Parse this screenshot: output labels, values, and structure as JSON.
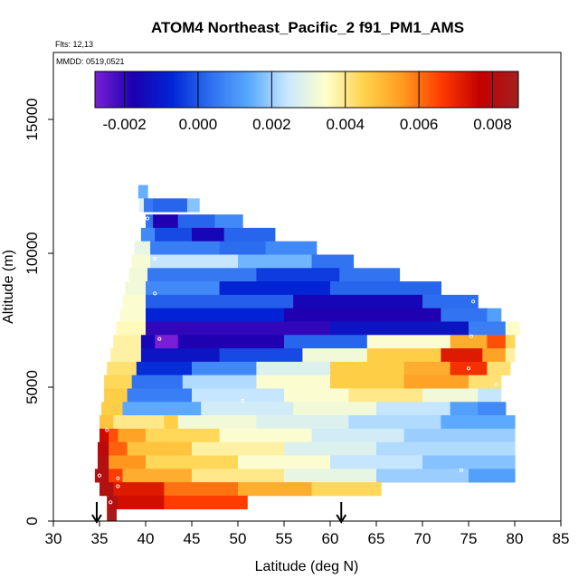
{
  "chart_data": {
    "type": "heatmap",
    "title": "ATOM4 Northeast_Pacific_2 f91_PM1_AMS",
    "annotations": {
      "flights": "Flts: 12,13",
      "dates": "MMDD: 0519,0521"
    },
    "xlabel": "Latitude (deg N)",
    "ylabel": "Altitude (m)",
    "xlim": [
      30,
      85
    ],
    "ylim": [
      0,
      17500
    ],
    "xticks": [
      "30",
      "35",
      "40",
      "45",
      "50",
      "55",
      "60",
      "65",
      "70",
      "75",
      "80",
      "85"
    ],
    "yticks": [
      "0",
      "5000",
      "10000",
      "15000"
    ],
    "colorbar": {
      "range": [
        -0.0028,
        0.0087
      ],
      "ticks": [
        "-0.002",
        "0.000",
        "0.002",
        "0.004",
        "0.006",
        "0.008"
      ],
      "tick_values": [
        -0.002,
        0.0,
        0.002,
        0.004,
        0.006,
        0.008
      ],
      "colors": [
        "#7a1fd6",
        "#1b00b0",
        "#0026d6",
        "#2e6ff0",
        "#59a9ff",
        "#c9e8ff",
        "#ffffcc",
        "#ffd24a",
        "#ff9a1f",
        "#ff3b00",
        "#c40000",
        "#a32020"
      ]
    },
    "arrows": [
      34.7,
      61.2
    ],
    "layers": [
      {
        "alt": 12300,
        "segs": [
          [
            39.2,
            40.2,
            0.0015
          ]
        ]
      },
      {
        "alt": 11800,
        "segs": [
          [
            39.3,
            39.8,
            0.0028
          ],
          [
            39.8,
            40.8,
            0.0005
          ],
          [
            40.8,
            44.5,
            0.0002
          ],
          [
            44.5,
            45.8,
            0.0018
          ]
        ]
      },
      {
        "alt": 11200,
        "segs": [
          [
            40.0,
            40.8,
            0.0004
          ],
          [
            40.8,
            43.5,
            -0.0018
          ],
          [
            43.5,
            47.5,
            0.0002
          ],
          [
            47.5,
            50.5,
            0.0008
          ]
        ]
      },
      {
        "alt": 10700,
        "segs": [
          [
            39.5,
            41.0,
            0.0008
          ],
          [
            41.0,
            45.0,
            -0.0002
          ],
          [
            45.0,
            48.5,
            -0.0016
          ],
          [
            48.5,
            54.0,
            0.0002
          ]
        ]
      },
      {
        "alt": 10200,
        "segs": [
          [
            38.8,
            40.5,
            0.003
          ],
          [
            40.5,
            48.0,
            0.0006
          ],
          [
            48.0,
            53.0,
            0.0003
          ],
          [
            53.0,
            58.5,
            0.0008
          ]
        ]
      },
      {
        "alt": 9700,
        "segs": [
          [
            38.5,
            40.5,
            0.0033
          ],
          [
            40.5,
            50.0,
            0.0024
          ],
          [
            50.0,
            58.0,
            0.0016
          ],
          [
            58.0,
            62.5,
            0.0004
          ]
        ]
      },
      {
        "alt": 9200,
        "segs": [
          [
            38.2,
            40.2,
            0.0032
          ],
          [
            40.2,
            52.0,
            0.0005
          ],
          [
            52.0,
            61.0,
            -0.0004
          ],
          [
            61.0,
            67.5,
            0.0004
          ]
        ]
      },
      {
        "alt": 8700,
        "segs": [
          [
            37.8,
            40.0,
            0.0032
          ],
          [
            40.0,
            48.0,
            0.0008
          ],
          [
            48.0,
            60.0,
            -0.0008
          ],
          [
            60.0,
            72.0,
            0.0002
          ]
        ]
      },
      {
        "alt": 8200,
        "segs": [
          [
            37.5,
            40.0,
            0.0034
          ],
          [
            40.0,
            56.0,
            0.0001
          ],
          [
            56.0,
            70.0,
            -0.0016
          ],
          [
            70.0,
            76.0,
            0.0003
          ]
        ]
      },
      {
        "alt": 7700,
        "segs": [
          [
            37.2,
            40.0,
            0.0034
          ],
          [
            40.0,
            55.0,
            -0.0008
          ],
          [
            55.0,
            72.0,
            -0.0018
          ],
          [
            72.0,
            77.0,
            0.0004
          ],
          [
            77.0,
            78.5,
            0.0012
          ]
        ]
      },
      {
        "alt": 7200,
        "segs": [
          [
            36.8,
            40.0,
            0.0036
          ],
          [
            40.0,
            60.0,
            -0.002
          ],
          [
            60.0,
            75.0,
            -0.0012
          ],
          [
            75.0,
            79.0,
            0.0006
          ],
          [
            79.0,
            80.5,
            0.0035
          ]
        ]
      },
      {
        "alt": 6700,
        "segs": [
          [
            36.5,
            39.5,
            0.0038
          ],
          [
            39.5,
            41.0,
            -0.0016
          ],
          [
            41.0,
            43.5,
            -0.0028
          ],
          [
            43.5,
            55.0,
            -0.0018
          ],
          [
            55.0,
            64.0,
            0.0002
          ],
          [
            64.0,
            73.0,
            0.0034
          ],
          [
            73.0,
            77.0,
            0.0052
          ],
          [
            77.0,
            79.0,
            0.0064
          ],
          [
            79.0,
            80.0,
            0.0044
          ]
        ]
      },
      {
        "alt": 6200,
        "segs": [
          [
            36.2,
            39.5,
            0.0038
          ],
          [
            39.5,
            48.0,
            -0.0012
          ],
          [
            48.0,
            57.0,
            -0.0002
          ],
          [
            57.0,
            64.0,
            0.0032
          ],
          [
            64.0,
            72.0,
            0.0046
          ],
          [
            72.0,
            76.5,
            0.0072
          ],
          [
            76.5,
            79.0,
            0.0054
          ],
          [
            79.0,
            80.0,
            0.0038
          ]
        ]
      },
      {
        "alt": 5700,
        "segs": [
          [
            35.8,
            39.0,
            0.0042
          ],
          [
            39.0,
            45.0,
            -0.0006
          ],
          [
            45.0,
            52.0,
            0.0008
          ],
          [
            52.0,
            60.0,
            0.0028
          ],
          [
            60.0,
            68.0,
            0.0046
          ],
          [
            68.0,
            73.0,
            0.0052
          ],
          [
            73.0,
            77.0,
            0.0068
          ],
          [
            77.0,
            79.5,
            0.0042
          ]
        ]
      },
      {
        "alt": 5200,
        "segs": [
          [
            35.5,
            38.5,
            0.0044
          ],
          [
            38.5,
            44.0,
            0.0004
          ],
          [
            44.0,
            52.0,
            0.0022
          ],
          [
            52.0,
            60.0,
            0.0034
          ],
          [
            60.0,
            68.0,
            0.0046
          ],
          [
            68.0,
            75.0,
            0.0054
          ],
          [
            75.0,
            78.5,
            0.0042
          ]
        ]
      },
      {
        "alt": 4700,
        "segs": [
          [
            35.5,
            38.0,
            0.0046
          ],
          [
            38.0,
            45.0,
            0.0006
          ],
          [
            45.0,
            55.0,
            0.0024
          ],
          [
            55.0,
            62.0,
            0.0034
          ],
          [
            62.0,
            70.0,
            0.004
          ],
          [
            70.0,
            76.0,
            0.0032
          ],
          [
            76.0,
            78.5,
            0.0024
          ]
        ]
      },
      {
        "alt": 4200,
        "segs": [
          [
            35.2,
            37.5,
            0.0046
          ],
          [
            37.5,
            46.0,
            0.0014
          ],
          [
            46.0,
            56.0,
            0.0026
          ],
          [
            56.0,
            65.0,
            0.0032
          ],
          [
            65.0,
            73.0,
            0.0024
          ],
          [
            73.0,
            76.0,
            0.0012
          ],
          [
            76.0,
            79.0,
            0.0008
          ]
        ]
      },
      {
        "alt": 3700,
        "segs": [
          [
            35.0,
            36.5,
            0.0048
          ],
          [
            36.5,
            42.0,
            0.004
          ],
          [
            42.0,
            43.5,
            0.0046
          ],
          [
            43.5,
            52.0,
            0.0032
          ],
          [
            52.0,
            62.0,
            0.0028
          ],
          [
            62.0,
            72.0,
            0.0022
          ],
          [
            72.0,
            80.0,
            0.0014
          ]
        ]
      },
      {
        "alt": 3200,
        "segs": [
          [
            35.0,
            36.0,
            0.0075
          ],
          [
            36.0,
            37.0,
            0.0064
          ],
          [
            37.0,
            40.0,
            0.0054
          ],
          [
            40.0,
            48.0,
            0.0044
          ],
          [
            48.0,
            58.0,
            0.0034
          ],
          [
            58.0,
            68.0,
            0.0026
          ],
          [
            68.0,
            80.0,
            0.002
          ]
        ]
      },
      {
        "alt": 2700,
        "segs": [
          [
            34.8,
            36.0,
            0.008
          ],
          [
            36.0,
            38.0,
            0.0062
          ],
          [
            38.0,
            45.0,
            0.0048
          ],
          [
            45.0,
            55.0,
            0.0038
          ],
          [
            55.0,
            65.0,
            0.0028
          ],
          [
            65.0,
            80.0,
            0.0022
          ]
        ]
      },
      {
        "alt": 2200,
        "segs": [
          [
            34.8,
            36.0,
            0.0082
          ],
          [
            36.0,
            40.0,
            0.0056
          ],
          [
            40.0,
            50.0,
            0.0044
          ],
          [
            50.0,
            60.0,
            0.0034
          ],
          [
            60.0,
            70.0,
            0.0024
          ],
          [
            70.0,
            80.0,
            0.0018
          ]
        ]
      },
      {
        "alt": 1700,
        "segs": [
          [
            34.5,
            36.0,
            0.0082
          ],
          [
            36.0,
            37.5,
            0.0066
          ],
          [
            37.5,
            45.0,
            0.0052
          ],
          [
            45.0,
            55.0,
            0.004
          ],
          [
            55.0,
            65.0,
            0.003
          ],
          [
            65.0,
            75.0,
            0.002
          ],
          [
            75.0,
            80.0,
            0.0012
          ]
        ]
      },
      {
        "alt": 1200,
        "segs": [
          [
            35.0,
            36.5,
            0.0082
          ],
          [
            36.5,
            42.0,
            0.0072
          ],
          [
            42.0,
            50.0,
            0.006
          ],
          [
            50.0,
            58.0,
            0.0052
          ],
          [
            58.0,
            65.5,
            0.0044
          ]
        ]
      },
      {
        "alt": 700,
        "segs": [
          [
            35.8,
            37.0,
            0.0082
          ],
          [
            37.0,
            42.0,
            0.0074
          ],
          [
            42.0,
            51.0,
            0.0066
          ]
        ]
      },
      {
        "alt": 200,
        "segs": [
          [
            35.8,
            36.8,
            0.0085
          ]
        ]
      }
    ],
    "sample_points": [
      [
        40.2,
        11300
      ],
      [
        41.0,
        9800
      ],
      [
        41.0,
        8500
      ],
      [
        41.5,
        6800
      ],
      [
        75.5,
        8200
      ],
      [
        75.0,
        5700
      ],
      [
        78.0,
        5100
      ],
      [
        50.5,
        4500
      ],
      [
        75.3,
        6900
      ],
      [
        74.2,
        1900
      ],
      [
        35.8,
        3400
      ],
      [
        35.0,
        1700
      ],
      [
        37.0,
        1300
      ],
      [
        36.2,
        700
      ],
      [
        37.0,
        1600
      ]
    ]
  }
}
